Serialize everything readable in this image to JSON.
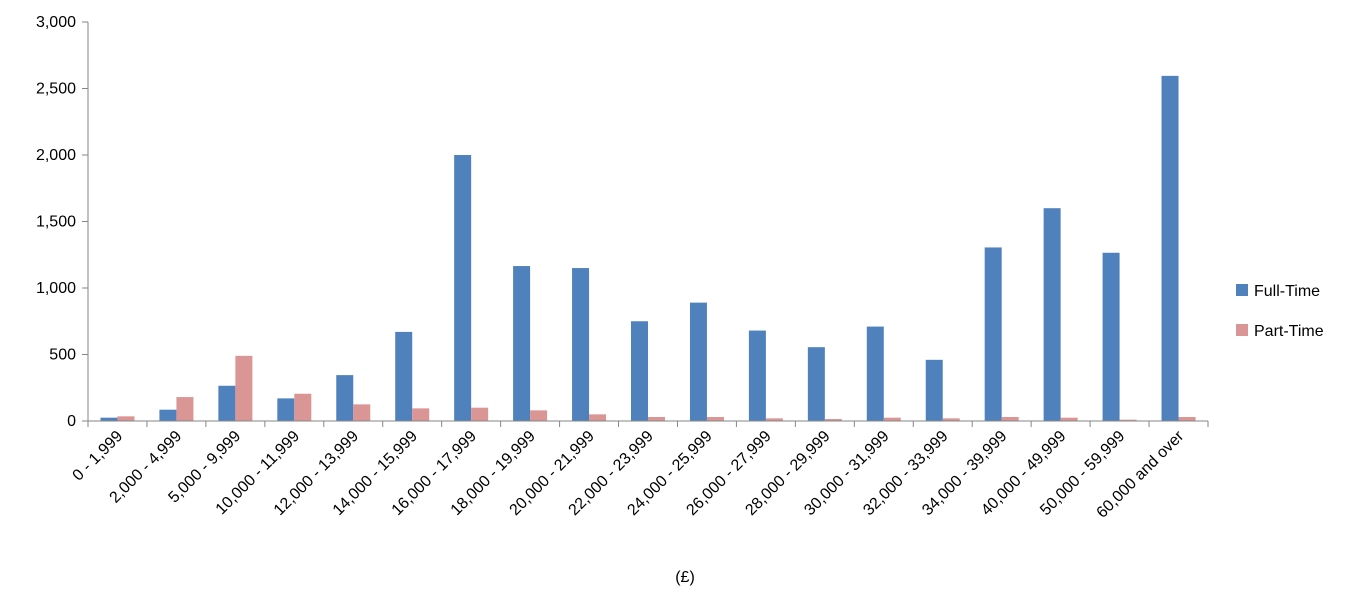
{
  "chart_data": {
    "type": "bar",
    "title": "",
    "xlabel": "(£)",
    "ylabel": "",
    "ylim": [
      0,
      3000
    ],
    "yticks": [
      0,
      500,
      1000,
      1500,
      2000,
      2500,
      3000
    ],
    "ytick_labels": [
      "0",
      "500",
      "1,000",
      "1,500",
      "2,000",
      "2,500",
      "3,000"
    ],
    "grid": false,
    "legend_position": "right",
    "categories": [
      "0 - 1,999",
      "2,000 - 4,999",
      "5,000 - 9,999",
      "10,000 - 11,999",
      "12,000 - 13,999",
      "14,000 - 15,999",
      "16,000 - 17,999",
      "18,000 - 19,999",
      "20,000 - 21,999",
      "22,000 - 23,999",
      "24,000 - 25,999",
      "26,000 - 27,999",
      "28,000 - 29,999",
      "30,000 - 31,999",
      "32,000 - 33,999",
      "34,000 - 39,999",
      "40,000 - 49,999",
      "50,000 - 59,999",
      "60,000 and over"
    ],
    "series": [
      {
        "name": "Full-Time",
        "color": "#4F81BD",
        "values": [
          25,
          85,
          265,
          170,
          345,
          670,
          2000,
          1165,
          1150,
          750,
          890,
          680,
          555,
          710,
          460,
          1305,
          1600,
          1265,
          2595
        ]
      },
      {
        "name": "Part-Time",
        "color": "#D99694",
        "values": [
          35,
          180,
          490,
          205,
          125,
          95,
          100,
          80,
          50,
          30,
          30,
          20,
          15,
          25,
          20,
          30,
          25,
          10,
          30
        ]
      }
    ]
  }
}
